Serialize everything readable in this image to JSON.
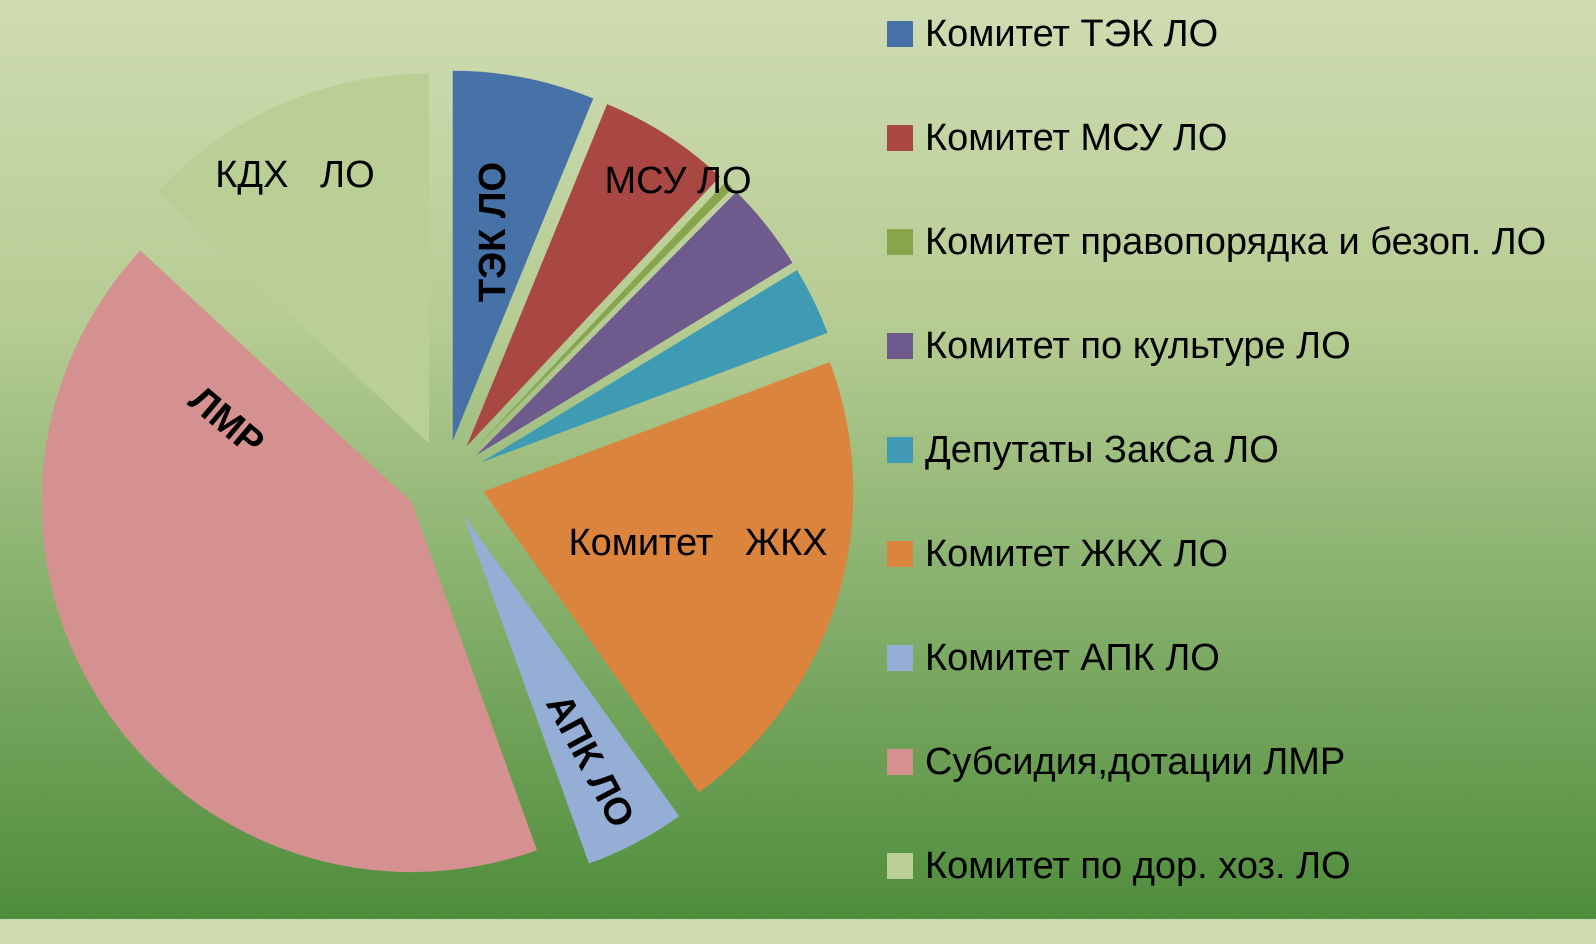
{
  "chart_data": {
    "type": "pie",
    "categories": [
      "Комитет ТЭК ЛО",
      "Комитет МСУ ЛО",
      "Комитет правопорядка и безоп. ЛО",
      "Комитет по культуре ЛО",
      "Депутаты ЗакСа ЛО",
      "Комитет ЖКХ ЛО",
      "Комитет АПК ЛО",
      "Субсидия,дотации ЛМР",
      "Комитет по дор. хоз. ЛО"
    ],
    "values": [
      6.2,
      5.8,
      0.4,
      3.9,
      3.0,
      20.8,
      4.4,
      42.4,
      13.1
    ],
    "colors": [
      "#4672a8",
      "#a94743",
      "#88a54b",
      "#6f5a8e",
      "#3f9ab3",
      "#db843d",
      "#94aed6",
      "#d59090",
      "#b9cf96"
    ],
    "data_labels": [
      "ТЭК ЛО",
      "МСУ ЛО",
      null,
      null,
      null,
      "Комитет   ЖКХ",
      "АПК ЛО",
      "ЛМР",
      "КДХ   ЛО"
    ],
    "legend": "right"
  }
}
